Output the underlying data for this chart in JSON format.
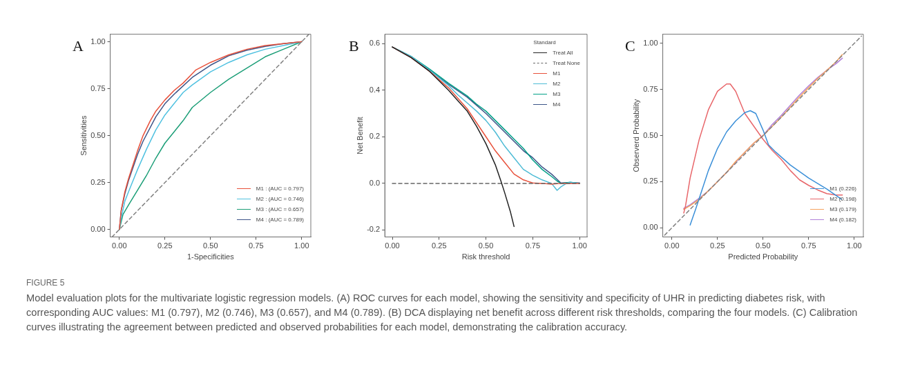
{
  "chart_data": [
    {
      "type": "line",
      "title": "A",
      "xlabel": "1-Specificities",
      "ylabel": "Sensitivities",
      "xlim": [
        -0.05,
        1.05
      ],
      "ylim": [
        -0.04,
        1.04
      ],
      "xticks": [
        {
          "value": 0,
          "label": "0.00"
        },
        {
          "value": 0.25,
          "label": "0.25"
        },
        {
          "value": 0.5,
          "label": "0.50"
        },
        {
          "value": 0.75,
          "label": "0.75"
        },
        {
          "value": 1,
          "label": "1.00"
        }
      ],
      "yticks": [
        {
          "value": 0,
          "label": "0.00"
        },
        {
          "value": 0.25,
          "label": "0.25"
        },
        {
          "value": 0.5,
          "label": "0.50"
        },
        {
          "value": 0.75,
          "label": "0.75"
        },
        {
          "value": 1,
          "label": "1.00"
        }
      ],
      "grid": false,
      "legend": "bottom right",
      "marker": "none",
      "series": [
        {
          "color": "#808080",
          "line_style": "dashed",
          "x": [
            -0.04,
            1.04
          ],
          "values": [
            -0.04,
            1.04
          ]
        },
        {
          "name": "M1 : (AUC = 0.797)",
          "color": "#e8503a",
          "x": [
            0,
            0.01,
            0.03,
            0.05,
            0.08,
            0.1,
            0.13,
            0.17,
            0.2,
            0.25,
            0.3,
            0.35,
            0.4,
            0.42,
            0.5,
            0.6,
            0.7,
            0.8,
            0.9,
            1
          ],
          "values": [
            0,
            0.1,
            0.2,
            0.27,
            0.36,
            0.42,
            0.5,
            0.58,
            0.63,
            0.69,
            0.74,
            0.78,
            0.83,
            0.85,
            0.89,
            0.93,
            0.96,
            0.98,
            0.99,
            1
          ]
        },
        {
          "name": "M2 : (AUC = 0.746)",
          "color": "#4fc1e0",
          "x": [
            0,
            0.01,
            0.03,
            0.05,
            0.1,
            0.15,
            0.2,
            0.25,
            0.3,
            0.35,
            0.4,
            0.5,
            0.6,
            0.7,
            0.8,
            0.9,
            1
          ],
          "values": [
            0,
            0.06,
            0.15,
            0.2,
            0.32,
            0.43,
            0.53,
            0.61,
            0.67,
            0.73,
            0.77,
            0.84,
            0.89,
            0.93,
            0.96,
            0.98,
            1
          ]
        },
        {
          "name": "M3 : (AUC = 0.657)",
          "color": "#1b9e77",
          "x": [
            0,
            0.02,
            0.05,
            0.1,
            0.15,
            0.2,
            0.25,
            0.3,
            0.35,
            0.4,
            0.5,
            0.6,
            0.7,
            0.8,
            0.9,
            1
          ],
          "values": [
            0,
            0.08,
            0.13,
            0.21,
            0.29,
            0.38,
            0.46,
            0.52,
            0.58,
            0.65,
            0.73,
            0.8,
            0.86,
            0.92,
            0.96,
            1
          ]
        },
        {
          "name": "M4 : (AUC = 0.789)",
          "color": "#3c5488",
          "x": [
            0,
            0.01,
            0.03,
            0.05,
            0.1,
            0.13,
            0.2,
            0.25,
            0.3,
            0.4,
            0.5,
            0.6,
            0.7,
            0.8,
            0.9,
            1
          ],
          "values": [
            0,
            0.1,
            0.19,
            0.26,
            0.4,
            0.47,
            0.6,
            0.67,
            0.72,
            0.81,
            0.875,
            0.925,
            0.955,
            0.975,
            0.99,
            1
          ]
        }
      ],
      "annotations": [
        "FIGURE 5",
        "Model evaluation plots for the multivariate logistic regression models. (A) ROC curves for each model, showing the sensitivity and specificity of UHR in predicting diabetes risk, with corresponding AUC values: M1 (0.797), M2 (0.746), M3 (0.657), and M4 (0.789). (B) DCA displaying net benefit across different risk thresholds, comparing the four models. (C) Calibration curves illustrating the agreement between predicted and observed probabilities for each model, demonstrating the calibration accuracy."
      ]
    },
    {
      "type": "line",
      "title": "B",
      "xlabel": "Risk threshold",
      "ylabel": "Net Benefit",
      "legend_title": "Standard",
      "xlim": [
        -0.04,
        1.04
      ],
      "ylim": [
        -0.23,
        0.64
      ],
      "xticks": [
        {
          "value": 0,
          "label": "0.00"
        },
        {
          "value": 0.25,
          "label": "0.25"
        },
        {
          "value": 0.5,
          "label": "0.50"
        },
        {
          "value": 0.75,
          "label": "0.75"
        },
        {
          "value": 1,
          "label": "1.00"
        }
      ],
      "yticks": [
        {
          "value": -0.2,
          "label": "-0.2"
        },
        {
          "value": 0,
          "label": "0.0"
        },
        {
          "value": 0.2,
          "label": "0.2"
        },
        {
          "value": 0.4,
          "label": "0.4"
        },
        {
          "value": 0.6,
          "label": "0.6"
        }
      ],
      "grid": false,
      "legend": "top right",
      "marker": "none",
      "series": [
        {
          "name": "Treat All",
          "color": "#222222",
          "x": [
            0,
            0.1,
            0.2,
            0.3,
            0.35,
            0.4,
            0.45,
            0.5,
            0.55,
            0.58,
            0.6,
            0.63,
            0.65
          ],
          "values": [
            0.585,
            0.54,
            0.48,
            0.4,
            0.355,
            0.31,
            0.245,
            0.17,
            0.08,
            0.01,
            -0.04,
            -0.12,
            -0.185
          ]
        },
        {
          "name": "Treat None",
          "color": "#666666",
          "line_style": "dashed",
          "x": [
            0,
            1
          ],
          "values": [
            0,
            0
          ]
        },
        {
          "name": "M1",
          "color": "#e8503a",
          "x": [
            0,
            0.1,
            0.2,
            0.3,
            0.35,
            0.4,
            0.45,
            0.5,
            0.55,
            0.6,
            0.65,
            0.7,
            0.75,
            0.8,
            0.85,
            0.9,
            0.95,
            1
          ],
          "values": [
            0.585,
            0.54,
            0.48,
            0.41,
            0.365,
            0.32,
            0.26,
            0.2,
            0.14,
            0.09,
            0.04,
            0.015,
            0.002,
            0,
            -0.003,
            0,
            0,
            0
          ]
        },
        {
          "name": "M2",
          "color": "#4dbbd5",
          "x": [
            0,
            0.1,
            0.2,
            0.3,
            0.35,
            0.4,
            0.45,
            0.5,
            0.55,
            0.6,
            0.65,
            0.7,
            0.75,
            0.8,
            0.85,
            0.88,
            0.9,
            0.93,
            0.95,
            1
          ],
          "values": [
            0.585,
            0.545,
            0.485,
            0.42,
            0.38,
            0.345,
            0.31,
            0.27,
            0.22,
            0.16,
            0.11,
            0.06,
            0.035,
            0.015,
            0,
            -0.03,
            -0.015,
            0,
            0.005,
            0
          ]
        },
        {
          "name": "M3",
          "color": "#00a087",
          "x": [
            0,
            0.1,
            0.2,
            0.3,
            0.4,
            0.45,
            0.5,
            0.55,
            0.6,
            0.65,
            0.7,
            0.75,
            0.8,
            0.85,
            0.88,
            0.9,
            0.95,
            1
          ],
          "values": [
            0.585,
            0.545,
            0.49,
            0.43,
            0.375,
            0.34,
            0.31,
            0.27,
            0.23,
            0.19,
            0.15,
            0.1,
            0.06,
            0.03,
            0.01,
            0,
            0.005,
            0
          ]
        },
        {
          "name": "M4",
          "color": "#3c5488",
          "x": [
            0,
            0.1,
            0.2,
            0.3,
            0.4,
            0.45,
            0.5,
            0.55,
            0.6,
            0.65,
            0.7,
            0.75,
            0.8,
            0.85,
            0.9,
            0.95,
            1
          ],
          "values": [
            0.585,
            0.54,
            0.485,
            0.425,
            0.37,
            0.335,
            0.3,
            0.26,
            0.22,
            0.18,
            0.14,
            0.11,
            0.07,
            0.04,
            0.002,
            0.003,
            0.002
          ]
        }
      ]
    },
    {
      "type": "line",
      "title": "C",
      "xlabel": "Predicted Probability",
      "ylabel": "Observerd Probability",
      "xlim": [
        -0.05,
        1.05
      ],
      "ylim": [
        -0.05,
        1.05
      ],
      "xticks": [
        {
          "value": 0,
          "label": "0.00"
        },
        {
          "value": 0.25,
          "label": "0.25"
        },
        {
          "value": 0.5,
          "label": "0.50"
        },
        {
          "value": 0.75,
          "label": "0.75"
        },
        {
          "value": 1,
          "label": "1.00"
        }
      ],
      "yticks": [
        {
          "value": 0,
          "label": "0.00"
        },
        {
          "value": 0.25,
          "label": "0.25"
        },
        {
          "value": 0.5,
          "label": "0.50"
        },
        {
          "value": 0.75,
          "label": "0.75"
        },
        {
          "value": 1,
          "label": "1.00"
        }
      ],
      "grid": false,
      "legend": "bottom right",
      "marker": "none",
      "series": [
        {
          "color": "#808080",
          "line_style": "dashed",
          "x": [
            -0.04,
            1.04
          ],
          "values": [
            -0.04,
            1.04
          ]
        },
        {
          "name": "M1 (0.226)",
          "color": "#3a8fd8",
          "x": [
            0.1,
            0.13,
            0.15,
            0.2,
            0.25,
            0.3,
            0.35,
            0.4,
            0.43,
            0.46,
            0.5,
            0.53,
            0.57,
            0.65,
            0.75,
            0.85,
            0.93
          ],
          "values": [
            0.015,
            0.1,
            0.16,
            0.31,
            0.43,
            0.52,
            0.58,
            0.625,
            0.635,
            0.62,
            0.53,
            0.45,
            0.41,
            0.34,
            0.27,
            0.21,
            0.155
          ]
        },
        {
          "name": "M2 (0.198)",
          "color": "#e8666a",
          "x": [
            0.065,
            0.075,
            0.1,
            0.15,
            0.2,
            0.25,
            0.3,
            0.32,
            0.35,
            0.4,
            0.45,
            0.5,
            0.55,
            0.6,
            0.65,
            0.7,
            0.75,
            0.8,
            0.85,
            0.9,
            0.935
          ],
          "values": [
            0.08,
            0.12,
            0.27,
            0.48,
            0.64,
            0.74,
            0.78,
            0.78,
            0.74,
            0.62,
            0.55,
            0.48,
            0.42,
            0.37,
            0.31,
            0.26,
            0.23,
            0.205,
            0.185,
            0.178,
            0.178
          ]
        },
        {
          "name": "M3 (0.179)",
          "color": "#f5a25d",
          "x": [
            0.065,
            0.1,
            0.15,
            0.2,
            0.25,
            0.3,
            0.35,
            0.4,
            0.45,
            0.5,
            0.55,
            0.6,
            0.65,
            0.7,
            0.75,
            0.8,
            0.85,
            0.9,
            0.935
          ],
          "values": [
            0.1,
            0.12,
            0.155,
            0.2,
            0.25,
            0.3,
            0.36,
            0.41,
            0.46,
            0.5,
            0.55,
            0.6,
            0.655,
            0.71,
            0.76,
            0.81,
            0.855,
            0.9,
            0.94
          ]
        },
        {
          "name": "M4 (0.182)",
          "color": "#b07fd8",
          "x": [
            0.065,
            0.1,
            0.15,
            0.2,
            0.25,
            0.3,
            0.35,
            0.4,
            0.45,
            0.5,
            0.55,
            0.6,
            0.65,
            0.7,
            0.75,
            0.8,
            0.85,
            0.9,
            0.935
          ],
          "values": [
            0.105,
            0.125,
            0.16,
            0.2,
            0.25,
            0.3,
            0.355,
            0.41,
            0.46,
            0.5,
            0.56,
            0.61,
            0.665,
            0.72,
            0.77,
            0.815,
            0.855,
            0.89,
            0.92
          ]
        }
      ]
    }
  ]
}
